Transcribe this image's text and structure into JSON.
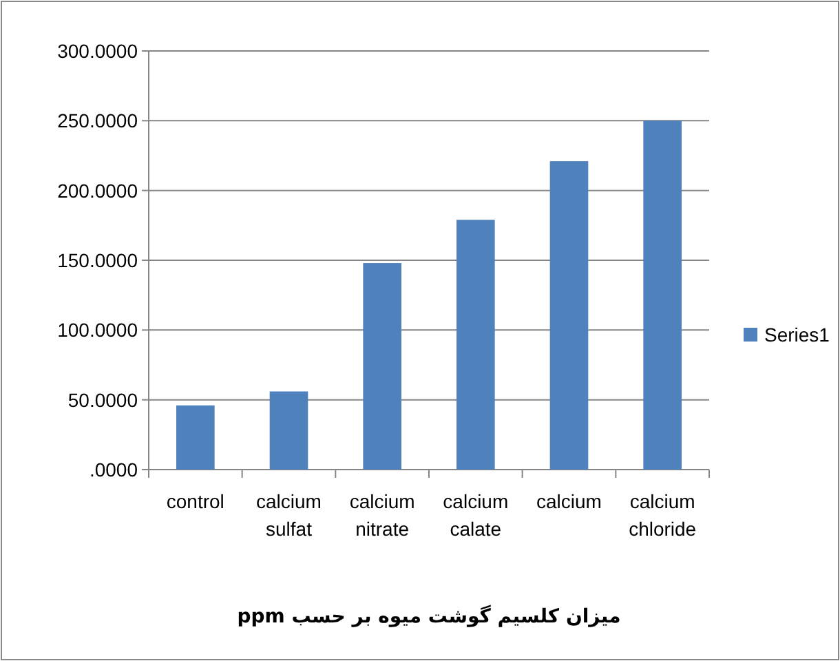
{
  "chart_data": {
    "type": "bar",
    "xlabel": "میزان کلسیم گوشت میوه بر حسب ppm",
    "categories": [
      "control",
      "calcium sulfat",
      "calcium nitrate",
      "calcium calate",
      "calcium",
      "calcium chloride"
    ],
    "series": [
      {
        "name": "Series1",
        "color": "#4f81bd",
        "values": [
          46,
          56,
          148,
          179,
          221,
          250
        ]
      }
    ],
    "ylim": [
      0,
      300
    ],
    "yticks": [
      {
        "value": 0,
        "label": ".0000"
      },
      {
        "value": 50,
        "label": "50.0000"
      },
      {
        "value": 100,
        "label": "100.0000"
      },
      {
        "value": 150,
        "label": "150.0000"
      },
      {
        "value": 200,
        "label": "200.0000"
      },
      {
        "value": 250,
        "label": "250.0000"
      },
      {
        "value": 300,
        "label": "300.0000"
      }
    ],
    "grid": "y",
    "legend": "right"
  }
}
